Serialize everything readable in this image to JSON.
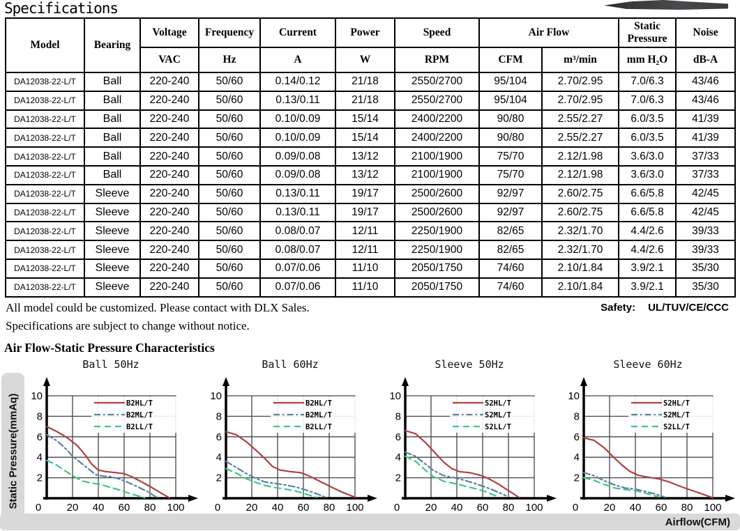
{
  "page": {
    "title": "Specifications"
  },
  "table": {
    "headers": {
      "model": "Model",
      "bearing": "Bearing",
      "voltage": "Voltage",
      "frequency": "Frequency",
      "current": "Current",
      "power": "Power",
      "speed": "Speed",
      "airflow": "Air Flow",
      "static_pressure": "Static Pressure",
      "noise": "Noise",
      "units": {
        "voltage": "VAC",
        "frequency": "Hz",
        "current": "A",
        "power": "W",
        "speed": "RPM",
        "cfm": "CFM",
        "m3min": "m³/min",
        "mmh2o": "mm H₂O",
        "dba": "dB-A"
      }
    },
    "rows": [
      [
        "DA12038-22-L/T",
        "Ball",
        "220-240",
        "50/60",
        "0.14/0.12",
        "21/18",
        "2550/2700",
        "95/104",
        "2.70/2.95",
        "7.0/6.3",
        "43/46"
      ],
      [
        "DA12038-22-L/T",
        "Ball",
        "220-240",
        "50/60",
        "0.13/0.11",
        "21/18",
        "2550/2700",
        "95/104",
        "2.70/2.95",
        "7.0/6.3",
        "43/46"
      ],
      [
        "DA12038-22-L/T",
        "Ball",
        "220-240",
        "50/60",
        "0.10/0.09",
        "15/14",
        "2400/2200",
        "90/80",
        "2.55/2.27",
        "6.0/3.5",
        "41/39"
      ],
      [
        "DA12038-22-L/T",
        "Ball",
        "220-240",
        "50/60",
        "0.10/0.09",
        "15/14",
        "2400/2200",
        "90/80",
        "2.55/2.27",
        "6.0/3.5",
        "41/39"
      ],
      [
        "DA12038-22-L/T",
        "Ball",
        "220-240",
        "50/60",
        "0.09/0.08",
        "13/12",
        "2100/1900",
        "75/70",
        "2.12/1.98",
        "3.6/3.0",
        "37/33"
      ],
      [
        "DA12038-22-L/T",
        "Ball",
        "220-240",
        "50/60",
        "0.09/0.08",
        "13/12",
        "2100/1900",
        "75/70",
        "2.12/1.98",
        "3.6/3.0",
        "37/33"
      ],
      [
        "DA12038-22-L/T",
        "Sleeve",
        "220-240",
        "50/60",
        "0.13/0.11",
        "19/17",
        "2500/2600",
        "92/97",
        "2.60/2.75",
        "6.6/5.8",
        "42/45"
      ],
      [
        "DA12038-22-L/T",
        "Sleeve",
        "220-240",
        "50/60",
        "0.13/0.11",
        "19/17",
        "2500/2600",
        "92/97",
        "2.60/2.75",
        "6.6/5.8",
        "42/45"
      ],
      [
        "DA12038-22-L/T",
        "Sleeve",
        "220-240",
        "50/60",
        "0.08/0.07",
        "12/11",
        "2250/1900",
        "82/65",
        "2.32/1.70",
        "4.4/2.6",
        "39/33"
      ],
      [
        "DA12038-22-L/T",
        "Sleeve",
        "220-240",
        "50/60",
        "0.08/0.07",
        "12/11",
        "2250/1900",
        "82/65",
        "2.32/1.70",
        "4.4/2.6",
        "39/33"
      ],
      [
        "DA12038-22-L/T",
        "Sleeve",
        "220-240",
        "50/60",
        "0.07/0.06",
        "11/10",
        "2050/1750",
        "74/60",
        "2.10/1.84",
        "3.9/2.1",
        "35/30"
      ],
      [
        "DA12038-22-L/T",
        "Sleeve",
        "220-240",
        "50/60",
        "0.07/0.06",
        "11/10",
        "2050/1750",
        "74/60",
        "2.10/1.84",
        "3.9/2.1",
        "35/30"
      ]
    ]
  },
  "notes": {
    "line1": "All model could be customized. Please contact with DLX Sales.",
    "line2": "Specifications are subject to change without notice.",
    "safety_label": "Safety:",
    "safety_value": "UL/TUV/CE/CCC"
  },
  "section": {
    "title": "Air Flow-Static Pressure Characteristics",
    "y_axis_label": "Static Pressure(mmAq)",
    "x_axis_label": "Airflow(CFM)"
  },
  "colors": {
    "series_high": "#b0413e",
    "series_mid": "#5b80a8",
    "series_low": "#3ec87e",
    "grid": "#444444",
    "axis": "#000000",
    "bar_background": "#d9d9d9"
  },
  "chart_data": [
    {
      "type": "line",
      "title": "Ball 50Hz",
      "xlabel": "Airflow(CFM)",
      "ylabel": "Static Pressure(mmAq)",
      "xlim": [
        0,
        100
      ],
      "ylim": [
        0,
        10
      ],
      "xticks": [
        0,
        20,
        40,
        60,
        80,
        100
      ],
      "yticks": [
        0,
        2,
        4,
        6,
        8,
        10
      ],
      "grid": true,
      "legend_position": "top-right",
      "series": [
        {
          "name": "B2HL/T",
          "color": "#b0413e",
          "style": "solid",
          "points": [
            [
              0,
              7.0
            ],
            [
              8,
              6.5
            ],
            [
              16,
              5.9
            ],
            [
              24,
              5.1
            ],
            [
              30,
              4.2
            ],
            [
              35,
              3.3
            ],
            [
              40,
              2.75
            ],
            [
              46,
              2.6
            ],
            [
              54,
              2.5
            ],
            [
              60,
              2.4
            ],
            [
              66,
              2.1
            ],
            [
              72,
              1.7
            ],
            [
              80,
              1.15
            ],
            [
              88,
              0.55
            ],
            [
              95,
              0.05
            ]
          ]
        },
        {
          "name": "B2ML/T",
          "color": "#5b80a8",
          "style": "dashdot",
          "points": [
            [
              0,
              6.2
            ],
            [
              8,
              5.6
            ],
            [
              15,
              4.8
            ],
            [
              20,
              4.1
            ],
            [
              26,
              3.5
            ],
            [
              32,
              2.9
            ],
            [
              38,
              2.3
            ],
            [
              44,
              2.15
            ],
            [
              50,
              2.1
            ],
            [
              56,
              1.9
            ],
            [
              62,
              1.6
            ],
            [
              70,
              1.15
            ],
            [
              78,
              0.65
            ],
            [
              85,
              0.1
            ]
          ]
        },
        {
          "name": "B2LL/T",
          "color": "#3ec87e",
          "style": "dashed",
          "points": [
            [
              0,
              3.7
            ],
            [
              7,
              3.3
            ],
            [
              14,
              2.7
            ],
            [
              20,
              2.2
            ],
            [
              27,
              1.7
            ],
            [
              34,
              1.5
            ],
            [
              42,
              1.35
            ],
            [
              48,
              1.1
            ],
            [
              54,
              0.9
            ],
            [
              60,
              0.65
            ],
            [
              66,
              0.4
            ],
            [
              72,
              0.2
            ],
            [
              76,
              0.05
            ]
          ]
        }
      ]
    },
    {
      "type": "line",
      "title": "Ball 60Hz",
      "xlabel": "Airflow(CFM)",
      "ylabel": "Static Pressure(mmAq)",
      "xlim": [
        0,
        100
      ],
      "ylim": [
        0,
        10
      ],
      "xticks": [
        0,
        20,
        40,
        60,
        80,
        100
      ],
      "yticks": [
        0,
        2,
        4,
        6,
        8,
        10
      ],
      "grid": true,
      "legend_position": "top-right",
      "series": [
        {
          "name": "B2HL/T",
          "color": "#b0413e",
          "style": "solid",
          "points": [
            [
              0,
              6.5
            ],
            [
              8,
              6.2
            ],
            [
              16,
              5.5
            ],
            [
              24,
              4.6
            ],
            [
              30,
              3.9
            ],
            [
              36,
              3.1
            ],
            [
              42,
              2.75
            ],
            [
              50,
              2.6
            ],
            [
              58,
              2.5
            ],
            [
              64,
              2.2
            ],
            [
              72,
              1.7
            ],
            [
              80,
              1.2
            ],
            [
              90,
              0.6
            ],
            [
              100,
              0.1
            ]
          ]
        },
        {
          "name": "B2ML/T",
          "color": "#5b80a8",
          "style": "dashdot",
          "points": [
            [
              0,
              3.6
            ],
            [
              8,
              3.0
            ],
            [
              16,
              2.4
            ],
            [
              22,
              2.0
            ],
            [
              30,
              1.6
            ],
            [
              38,
              1.45
            ],
            [
              46,
              1.3
            ],
            [
              54,
              1.1
            ],
            [
              62,
              0.8
            ],
            [
              70,
              0.45
            ],
            [
              77,
              0.1
            ]
          ]
        },
        {
          "name": "B2LL/T",
          "color": "#3ec87e",
          "style": "dashed",
          "points": [
            [
              0,
              2.9
            ],
            [
              8,
              2.45
            ],
            [
              16,
              1.9
            ],
            [
              22,
              1.6
            ],
            [
              30,
              1.25
            ],
            [
              38,
              1.05
            ],
            [
              46,
              0.9
            ],
            [
              54,
              0.7
            ],
            [
              60,
              0.5
            ],
            [
              66,
              0.25
            ],
            [
              70,
              0.1
            ]
          ]
        }
      ]
    },
    {
      "type": "line",
      "title": "Sleeve 50Hz",
      "xlabel": "Airflow(CFM)",
      "ylabel": "Static Pressure(mmAq)",
      "xlim": [
        0,
        100
      ],
      "ylim": [
        0,
        10
      ],
      "xticks": [
        0,
        20,
        40,
        60,
        80,
        100
      ],
      "yticks": [
        0,
        2,
        4,
        6,
        8,
        10
      ],
      "grid": true,
      "legend_position": "top-right",
      "series": [
        {
          "name": "S2HL/T",
          "color": "#b0413e",
          "style": "solid",
          "points": [
            [
              0,
              6.6
            ],
            [
              8,
              6.3
            ],
            [
              16,
              5.4
            ],
            [
              24,
              4.3
            ],
            [
              30,
              3.5
            ],
            [
              36,
              2.9
            ],
            [
              42,
              2.6
            ],
            [
              50,
              2.5
            ],
            [
              58,
              2.25
            ],
            [
              64,
              1.95
            ],
            [
              72,
              1.4
            ],
            [
              80,
              0.75
            ],
            [
              88,
              0.1
            ]
          ]
        },
        {
          "name": "S2ML/T",
          "color": "#5b80a8",
          "style": "dashdot",
          "points": [
            [
              0,
              4.5
            ],
            [
              8,
              4.1
            ],
            [
              16,
              3.3
            ],
            [
              22,
              2.7
            ],
            [
              30,
              2.2
            ],
            [
              38,
              2.0
            ],
            [
              46,
              1.75
            ],
            [
              54,
              1.45
            ],
            [
              62,
              1.1
            ],
            [
              70,
              0.7
            ],
            [
              78,
              0.25
            ]
          ]
        },
        {
          "name": "S2LL/T",
          "color": "#3ec87e",
          "style": "dashed",
          "points": [
            [
              0,
              4.1
            ],
            [
              8,
              3.6
            ],
            [
              16,
              2.7
            ],
            [
              22,
              2.1
            ],
            [
              30,
              1.65
            ],
            [
              38,
              1.45
            ],
            [
              46,
              1.2
            ],
            [
              54,
              0.95
            ],
            [
              62,
              0.65
            ],
            [
              70,
              0.25
            ]
          ]
        }
      ]
    },
    {
      "type": "line",
      "title": "Sleeve 60Hz",
      "xlabel": "Airflow(CFM)",
      "ylabel": "Static Pressure(mmAq)",
      "xlim": [
        0,
        100
      ],
      "ylim": [
        0,
        10
      ],
      "xticks": [
        0,
        20,
        40,
        60,
        80,
        100
      ],
      "yticks": [
        0,
        2,
        4,
        6,
        8,
        10
      ],
      "grid": true,
      "legend_position": "top-right",
      "series": [
        {
          "name": "S2HL/T",
          "color": "#b0413e",
          "style": "solid",
          "points": [
            [
              0,
              5.9
            ],
            [
              8,
              5.65
            ],
            [
              16,
              4.9
            ],
            [
              24,
              3.9
            ],
            [
              30,
              3.2
            ],
            [
              36,
              2.6
            ],
            [
              42,
              2.25
            ],
            [
              50,
              2.05
            ],
            [
              58,
              1.9
            ],
            [
              66,
              1.6
            ],
            [
              74,
              1.2
            ],
            [
              84,
              0.75
            ],
            [
              92,
              0.4
            ],
            [
              100,
              0.05
            ]
          ]
        },
        {
          "name": "S2ML/T",
          "color": "#5b80a8",
          "style": "dashdot",
          "points": [
            [
              0,
              2.5
            ],
            [
              8,
              2.2
            ],
            [
              16,
              1.7
            ],
            [
              24,
              1.3
            ],
            [
              32,
              1.0
            ],
            [
              40,
              0.9
            ],
            [
              48,
              0.65
            ],
            [
              56,
              0.4
            ],
            [
              63,
              0.1
            ]
          ]
        },
        {
          "name": "S2LL/T",
          "color": "#3ec87e",
          "style": "dashed",
          "points": [
            [
              0,
              2.0
            ],
            [
              8,
              1.75
            ],
            [
              16,
              1.35
            ],
            [
              24,
              1.0
            ],
            [
              32,
              0.85
            ],
            [
              40,
              0.75
            ],
            [
              46,
              0.55
            ],
            [
              52,
              0.35
            ],
            [
              58,
              0.15
            ]
          ]
        }
      ]
    }
  ]
}
